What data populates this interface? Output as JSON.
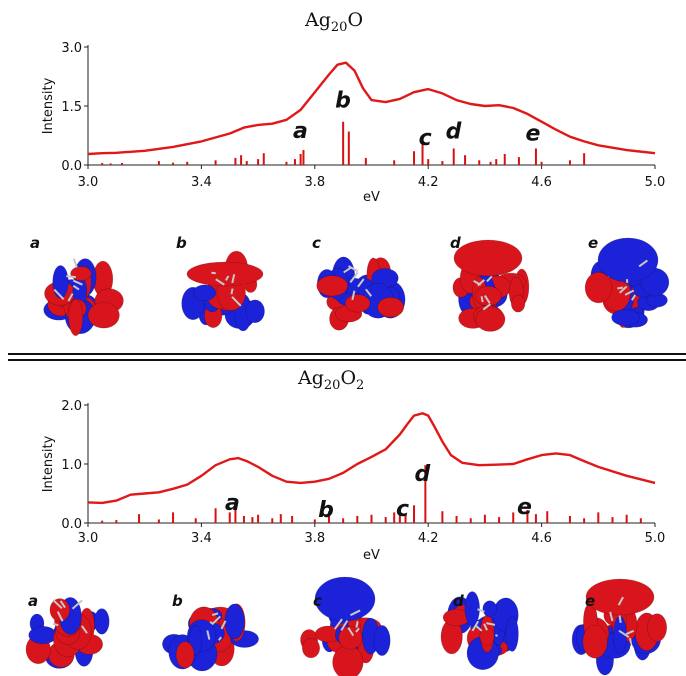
{
  "chart_data": [
    {
      "type": "line",
      "title_main": "Ag",
      "title_sub": "20",
      "title_tail": "O",
      "xlabel": "eV",
      "ylabel": "Intensity",
      "xlim": [
        3.0,
        5.0
      ],
      "ylim": [
        0,
        3.0
      ],
      "xticks": [
        "3.0",
        "3.4",
        "3.8",
        "4.2",
        "4.6",
        "5.0"
      ],
      "yticks": [
        "0.0",
        "1.5",
        "3.0"
      ],
      "spectrum": {
        "x": [
          3.0,
          3.05,
          3.1,
          3.2,
          3.3,
          3.4,
          3.5,
          3.55,
          3.6,
          3.65,
          3.7,
          3.75,
          3.8,
          3.85,
          3.88,
          3.91,
          3.94,
          3.97,
          4.0,
          4.05,
          4.1,
          4.15,
          4.2,
          4.25,
          4.3,
          4.35,
          4.4,
          4.45,
          4.5,
          4.55,
          4.6,
          4.65,
          4.7,
          4.75,
          4.8,
          4.9,
          5.0
        ],
        "y": [
          0.28,
          0.3,
          0.31,
          0.36,
          0.46,
          0.6,
          0.8,
          0.95,
          1.02,
          1.05,
          1.15,
          1.4,
          1.85,
          2.3,
          2.55,
          2.6,
          2.4,
          1.95,
          1.65,
          1.6,
          1.68,
          1.85,
          1.93,
          1.82,
          1.65,
          1.55,
          1.5,
          1.52,
          1.45,
          1.3,
          1.1,
          0.9,
          0.72,
          0.6,
          0.5,
          0.38,
          0.3
        ]
      },
      "sticks": {
        "x": [
          3.05,
          3.08,
          3.12,
          3.25,
          3.3,
          3.35,
          3.45,
          3.52,
          3.54,
          3.56,
          3.6,
          3.62,
          3.7,
          3.73,
          3.75,
          3.76,
          3.9,
          3.92,
          3.98,
          4.08,
          4.15,
          4.18,
          4.2,
          4.25,
          4.29,
          4.33,
          4.38,
          4.42,
          4.44,
          4.47,
          4.52,
          4.58,
          4.6,
          4.7,
          4.75
        ],
        "y": [
          0.05,
          0.04,
          0.05,
          0.1,
          0.06,
          0.08,
          0.12,
          0.18,
          0.25,
          0.1,
          0.15,
          0.3,
          0.08,
          0.15,
          0.28,
          0.38,
          1.1,
          0.85,
          0.18,
          0.12,
          0.35,
          0.55,
          0.15,
          0.1,
          0.42,
          0.25,
          0.12,
          0.08,
          0.15,
          0.28,
          0.2,
          0.42,
          0.08,
          0.12,
          0.3
        ]
      },
      "peak_labels": [
        {
          "text": "a",
          "x": 3.76
        },
        {
          "text": "b",
          "x": 3.91
        },
        {
          "text": "c",
          "x": 4.2
        },
        {
          "text": "d",
          "x": 4.3
        },
        {
          "text": "e",
          "x": 4.58
        }
      ],
      "orbital_labels": [
        "a",
        "b",
        "c",
        "d",
        "e"
      ]
    },
    {
      "type": "line",
      "title_main": "Ag",
      "title_sub": "20",
      "title_tail": "O",
      "title_sub2": "2",
      "xlabel": "eV",
      "ylabel": "Intensity",
      "xlim": [
        3.0,
        5.0
      ],
      "ylim": [
        0,
        2.0
      ],
      "xticks": [
        "3.0",
        "3.4",
        "3.8",
        "4.2",
        "4.6",
        "5.0"
      ],
      "yticks": [
        "0.0",
        "1.0",
        "2.0"
      ],
      "spectrum": {
        "x": [
          3.0,
          3.05,
          3.1,
          3.15,
          3.2,
          3.25,
          3.3,
          3.35,
          3.4,
          3.45,
          3.5,
          3.53,
          3.56,
          3.6,
          3.65,
          3.7,
          3.75,
          3.8,
          3.85,
          3.9,
          3.95,
          4.0,
          4.05,
          4.1,
          4.13,
          4.15,
          4.18,
          4.2,
          4.22,
          4.25,
          4.28,
          4.32,
          4.38,
          4.45,
          4.5,
          4.55,
          4.6,
          4.65,
          4.7,
          4.75,
          4.8,
          4.9,
          5.0
        ],
        "y": [
          0.35,
          0.34,
          0.38,
          0.48,
          0.5,
          0.52,
          0.58,
          0.65,
          0.8,
          0.98,
          1.08,
          1.1,
          1.05,
          0.95,
          0.8,
          0.7,
          0.68,
          0.7,
          0.75,
          0.85,
          1.0,
          1.12,
          1.25,
          1.5,
          1.7,
          1.82,
          1.86,
          1.82,
          1.65,
          1.38,
          1.15,
          1.02,
          0.98,
          0.99,
          1.0,
          1.08,
          1.15,
          1.18,
          1.15,
          1.05,
          0.95,
          0.8,
          0.68
        ]
      },
      "sticks": {
        "x": [
          3.05,
          3.1,
          3.18,
          3.25,
          3.3,
          3.38,
          3.45,
          3.5,
          3.52,
          3.55,
          3.58,
          3.6,
          3.65,
          3.68,
          3.72,
          3.8,
          3.85,
          3.9,
          3.95,
          4.0,
          4.05,
          4.08,
          4.1,
          4.12,
          4.15,
          4.19,
          4.25,
          4.3,
          4.35,
          4.4,
          4.45,
          4.5,
          4.55,
          4.58,
          4.62,
          4.7,
          4.75,
          4.8,
          4.85,
          4.9,
          4.95
        ],
        "y": [
          0.04,
          0.05,
          0.15,
          0.06,
          0.18,
          0.08,
          0.25,
          0.18,
          0.32,
          0.12,
          0.1,
          0.14,
          0.08,
          0.15,
          0.12,
          0.06,
          0.2,
          0.08,
          0.12,
          0.14,
          0.1,
          0.18,
          0.25,
          0.15,
          0.3,
          0.98,
          0.2,
          0.12,
          0.08,
          0.14,
          0.1,
          0.18,
          0.22,
          0.15,
          0.2,
          0.12,
          0.08,
          0.18,
          0.1,
          0.14,
          0.08
        ]
      },
      "peak_labels": [
        {
          "text": "a",
          "x": 3.52
        },
        {
          "text": "b",
          "x": 3.85
        },
        {
          "text": "c",
          "x": 4.12
        },
        {
          "text": "d",
          "x": 4.19
        },
        {
          "text": "e",
          "x": 4.55
        }
      ],
      "orbital_labels": [
        "a",
        "b",
        "c",
        "d",
        "e"
      ]
    }
  ],
  "colors": {
    "curve": "#e01818",
    "stick": "#d81010",
    "lobe_red": "#d8141c",
    "lobe_blue": "#1c22d8"
  }
}
